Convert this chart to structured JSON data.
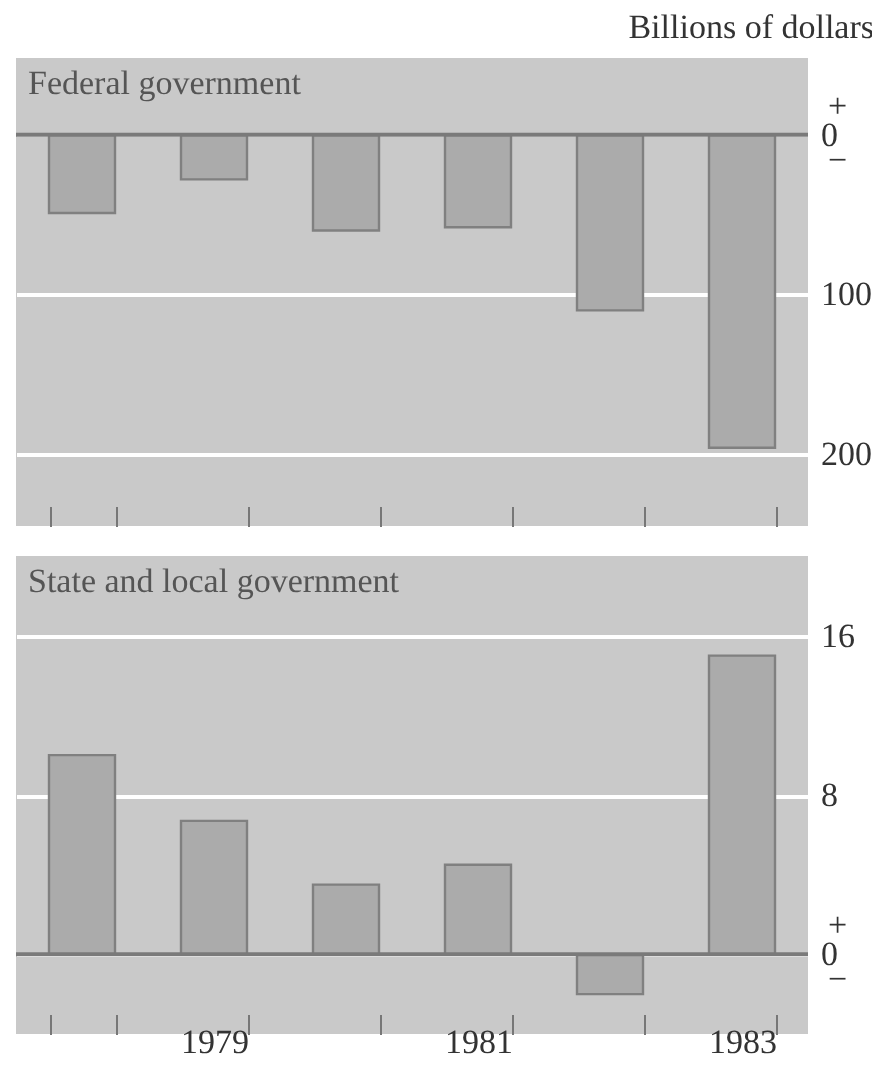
{
  "chart_data": [
    {
      "type": "bar",
      "title": "Federal government",
      "ylabel": "Billions of dollars",
      "categories": [
        null,
        "1979",
        null,
        "1981",
        null,
        "1983"
      ],
      "values": [
        -49,
        -28,
        -60,
        -58,
        -110,
        -196
      ],
      "color": "#ababab",
      "ylim": [
        -245,
        48
      ],
      "yticks": [
        {
          "value": 0,
          "label": "0"
        },
        {
          "value": -100,
          "label": "100"
        },
        {
          "value": -200,
          "label": "200"
        }
      ],
      "grid": "y",
      "tick_labels": "y",
      "annotations": [
        "+",
        "−"
      ],
      "ref_lines": [
        {
          "axis": "y",
          "value": 0,
          "color": "#7a7a7a"
        }
      ]
    },
    {
      "type": "bar",
      "title": "State and local government",
      "categories": [
        null,
        "1979",
        null,
        "1981",
        null,
        "1983"
      ],
      "values": [
        10.0,
        6.7,
        3.5,
        4.5,
        -2.0,
        15.0
      ],
      "color": "#ababab",
      "ylim": [
        -4,
        20
      ],
      "yticks": [
        0,
        8,
        16
      ],
      "grid": "y",
      "annotations": [
        "+",
        "−"
      ],
      "ref_lines": [
        {
          "axis": "y",
          "value": 0,
          "color": "#7a7a7a"
        }
      ]
    }
  ]
}
